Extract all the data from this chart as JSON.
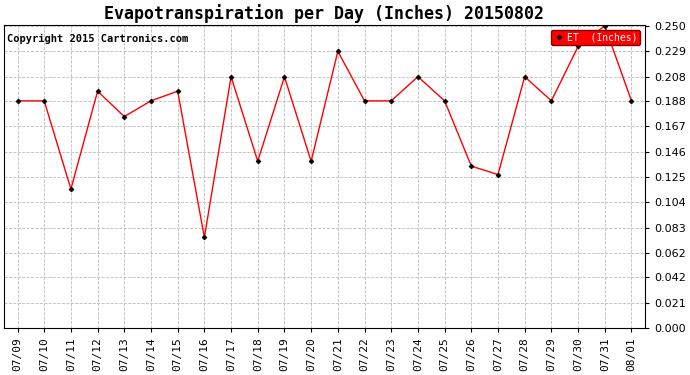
{
  "title": "Evapotranspiration per Day (Inches) 20150802",
  "copyright": "Copyright 2015 Cartronics.com",
  "legend_label": "ET  (Inches)",
  "x_labels": [
    "07/09",
    "07/10",
    "07/11",
    "07/12",
    "07/13",
    "07/14",
    "07/15",
    "07/16",
    "07/17",
    "07/18",
    "07/19",
    "07/20",
    "07/21",
    "07/22",
    "07/23",
    "07/24",
    "07/25",
    "07/26",
    "07/27",
    "07/28",
    "07/29",
    "07/30",
    "07/31",
    "08/01"
  ],
  "y_values": [
    0.188,
    0.188,
    0.115,
    0.196,
    0.175,
    0.188,
    0.196,
    0.075,
    0.208,
    0.138,
    0.208,
    0.138,
    0.229,
    0.188,
    0.188,
    0.208,
    0.188,
    0.134,
    0.127,
    0.208,
    0.188,
    0.233,
    0.25,
    0.188
  ],
  "ylim": [
    0.0,
    0.25
  ],
  "yticks": [
    0.0,
    0.021,
    0.042,
    0.062,
    0.083,
    0.104,
    0.125,
    0.146,
    0.167,
    0.188,
    0.208,
    0.229,
    0.25
  ],
  "line_color": "red",
  "marker": "D",
  "marker_color": "black",
  "marker_size": 2.5,
  "bg_color": "#ffffff",
  "plot_bg_color": "#ffffff",
  "grid_color": "#bbbbbb",
  "legend_bg": "red",
  "legend_text_color": "white",
  "title_fontsize": 12,
  "tick_fontsize": 8,
  "copyright_fontsize": 7.5
}
